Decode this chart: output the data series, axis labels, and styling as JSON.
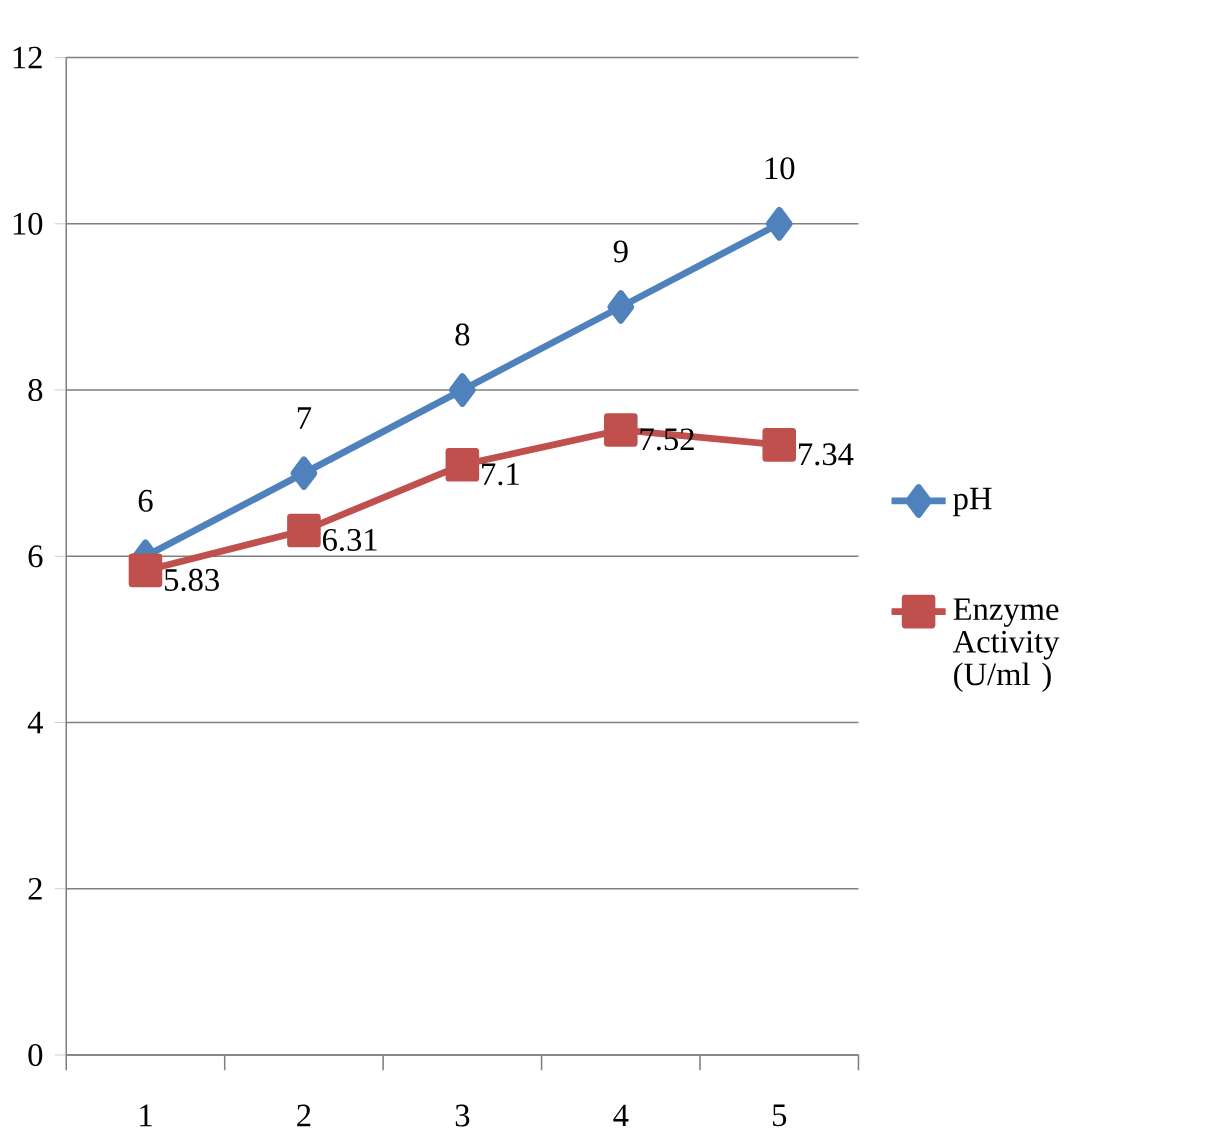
{
  "chart_data": {
    "type": "line",
    "categories": [
      "1",
      "2",
      "3",
      "4",
      "5"
    ],
    "series": [
      {
        "name": "pH",
        "color": "#4f81bd",
        "marker": "diamond",
        "values": [
          6,
          7,
          8,
          9,
          10
        ]
      },
      {
        "name": "Enzyme Activity (U/ml )",
        "color": "#c0504d",
        "marker": "square",
        "values": [
          5.83,
          6.31,
          7.1,
          7.52,
          7.34
        ]
      }
    ],
    "ylim": [
      0,
      12
    ],
    "yticks": [
      0,
      2,
      4,
      6,
      8,
      10,
      12
    ],
    "grid": "y",
    "legend": "right",
    "data_labels": true,
    "line_style": "solid"
  }
}
